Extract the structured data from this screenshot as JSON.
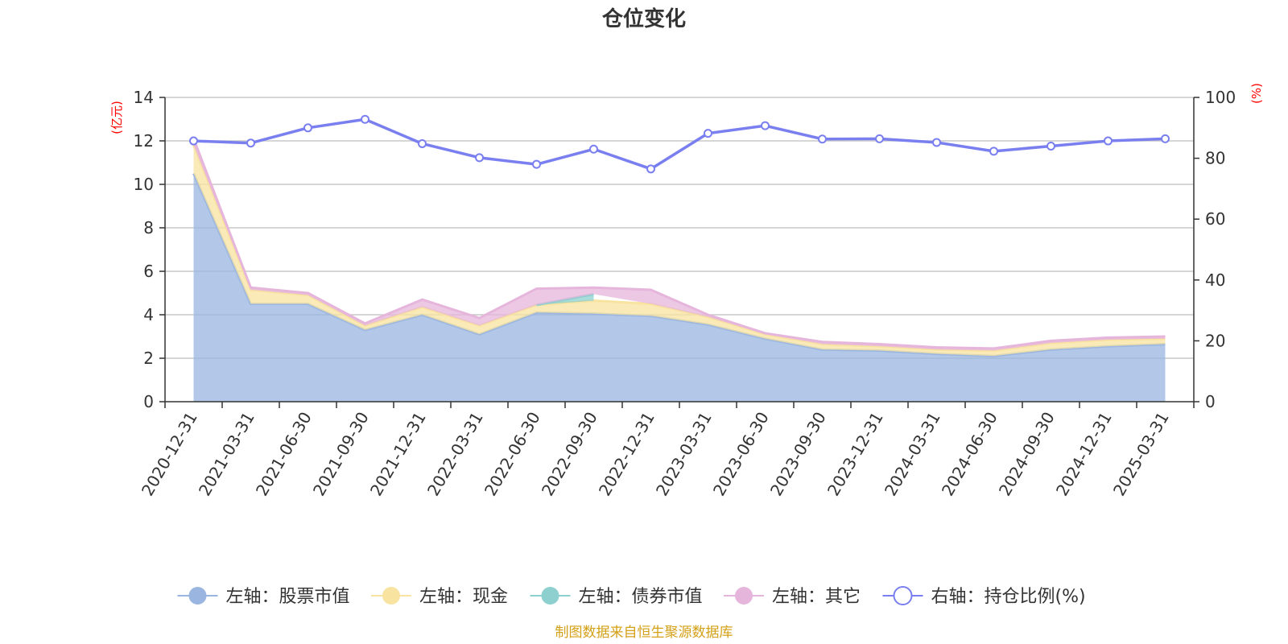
{
  "chart_data": {
    "type": "area",
    "title": "仓位变化",
    "left_axis": {
      "unit": "(亿元)",
      "min": 0,
      "max": 14,
      "ticks": [
        0,
        2,
        4,
        6,
        8,
        10,
        12,
        14
      ]
    },
    "right_axis": {
      "unit": "(%)",
      "min": 0,
      "max": 100,
      "ticks": [
        0,
        20,
        40,
        60,
        80,
        100
      ]
    },
    "x": [
      "2020-12-31",
      "2021-03-31",
      "2021-06-30",
      "2021-09-30",
      "2021-12-31",
      "2022-03-31",
      "2022-06-30",
      "2022-09-30",
      "2022-12-31",
      "2023-03-31",
      "2023-06-30",
      "2023-09-30",
      "2023-12-31",
      "2024-03-31",
      "2024-06-30",
      "2024-09-30",
      "2024-12-31",
      "2025-03-31"
    ],
    "stacked_series": [
      {
        "name": "左轴：股票市值",
        "color": "#9ab6e0",
        "values": [
          10.5,
          4.5,
          4.5,
          3.3,
          4.0,
          3.1,
          4.1,
          4.05,
          3.95,
          3.55,
          2.9,
          2.4,
          2.35,
          2.2,
          2.1,
          2.4,
          2.55,
          2.65
        ]
      },
      {
        "name": "左轴：现金",
        "color": "#f8e3a0",
        "values": [
          1.3,
          0.65,
          0.4,
          0.2,
          0.35,
          0.4,
          0.35,
          0.6,
          0.55,
          0.35,
          0.2,
          0.25,
          0.2,
          0.2,
          0.25,
          0.3,
          0.3,
          0.25
        ]
      },
      {
        "name": "左轴：债券市值",
        "color": "#8ed0cf",
        "values": [
          null,
          null,
          null,
          null,
          null,
          null,
          0.0,
          0.3,
          null,
          null,
          null,
          null,
          null,
          null,
          null,
          null,
          null,
          null
        ]
      },
      {
        "name": "左轴：其它",
        "color": "#e6b5dc",
        "values": [
          0.3,
          0.1,
          0.1,
          0.1,
          0.35,
          0.35,
          0.75,
          0.3,
          0.65,
          0.1,
          0.05,
          0.1,
          0.1,
          0.1,
          0.1,
          0.1,
          0.1,
          0.1
        ]
      }
    ],
    "line_series": {
      "name": "右轴：持仓比例(%)",
      "color": "#7a7ff0",
      "axis": "right",
      "values": [
        85.7,
        85.0,
        90.0,
        92.8,
        84.8,
        80.2,
        78.0,
        83.0,
        76.5,
        88.2,
        90.7,
        86.3,
        86.4,
        85.2,
        82.3,
        84.0,
        85.7,
        86.4
      ]
    },
    "legend_position": "bottom",
    "grid": true
  },
  "legend": {
    "items": [
      {
        "label": "左轴：股票市值",
        "color": "#9ab6e0",
        "marker": "filled-circle"
      },
      {
        "label": "左轴：现金",
        "color": "#f8e3a0",
        "marker": "filled-circle"
      },
      {
        "label": "左轴：债券市值",
        "color": "#8ed0cf",
        "marker": "filled-circle"
      },
      {
        "label": "左轴：其它",
        "color": "#e6b5dc",
        "marker": "filled-circle"
      },
      {
        "label": "右轴：持仓比例(%)",
        "color": "#7a7ff0",
        "marker": "hollow-circle"
      }
    ]
  },
  "source": "制图数据来自恒生聚源数据库"
}
